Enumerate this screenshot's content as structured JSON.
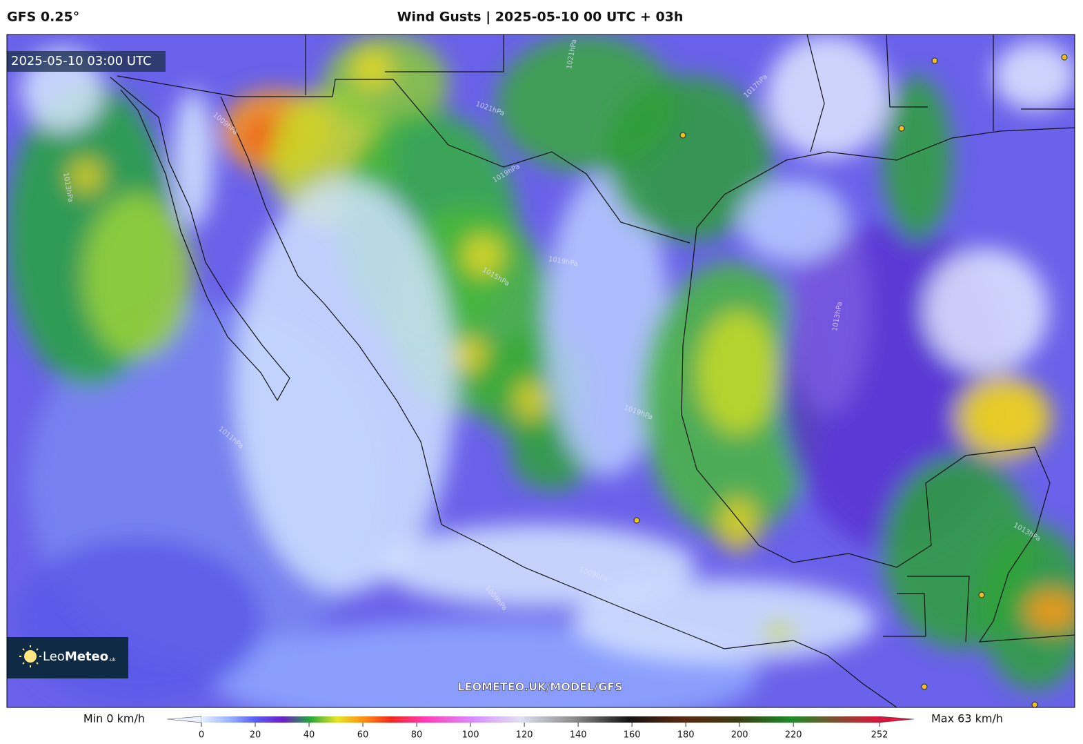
{
  "header": {
    "model": "GFS 0.25°",
    "title": "Wind Gusts | 2025-05-10 00 UTC + 03h"
  },
  "map": {
    "valid_time": "2025-05-10 03:00 UTC",
    "watermark": "LEOMETEO.UK/MODEL/GFS",
    "isobar_labels": [
      "1009hPa",
      "1013hPa",
      "1021hPa",
      "1021hPa",
      "1017hPa",
      "1019hPa",
      "1015hPa",
      "1019hPa",
      "1013hPa",
      "1019hPa",
      "1011hPa",
      "1009hPa",
      "1009hPa",
      "1013hPa"
    ]
  },
  "logo": {
    "brand_light": "Leo",
    "brand_bold": "Meteo",
    "suffix": ".uk"
  },
  "colorbar": {
    "min_label": "Min 0 km/h",
    "max_label": "Max 63 km/h",
    "range": [
      0,
      252
    ],
    "ticks": [
      0,
      20,
      40,
      60,
      80,
      100,
      120,
      140,
      160,
      180,
      200,
      220,
      252
    ]
  }
}
